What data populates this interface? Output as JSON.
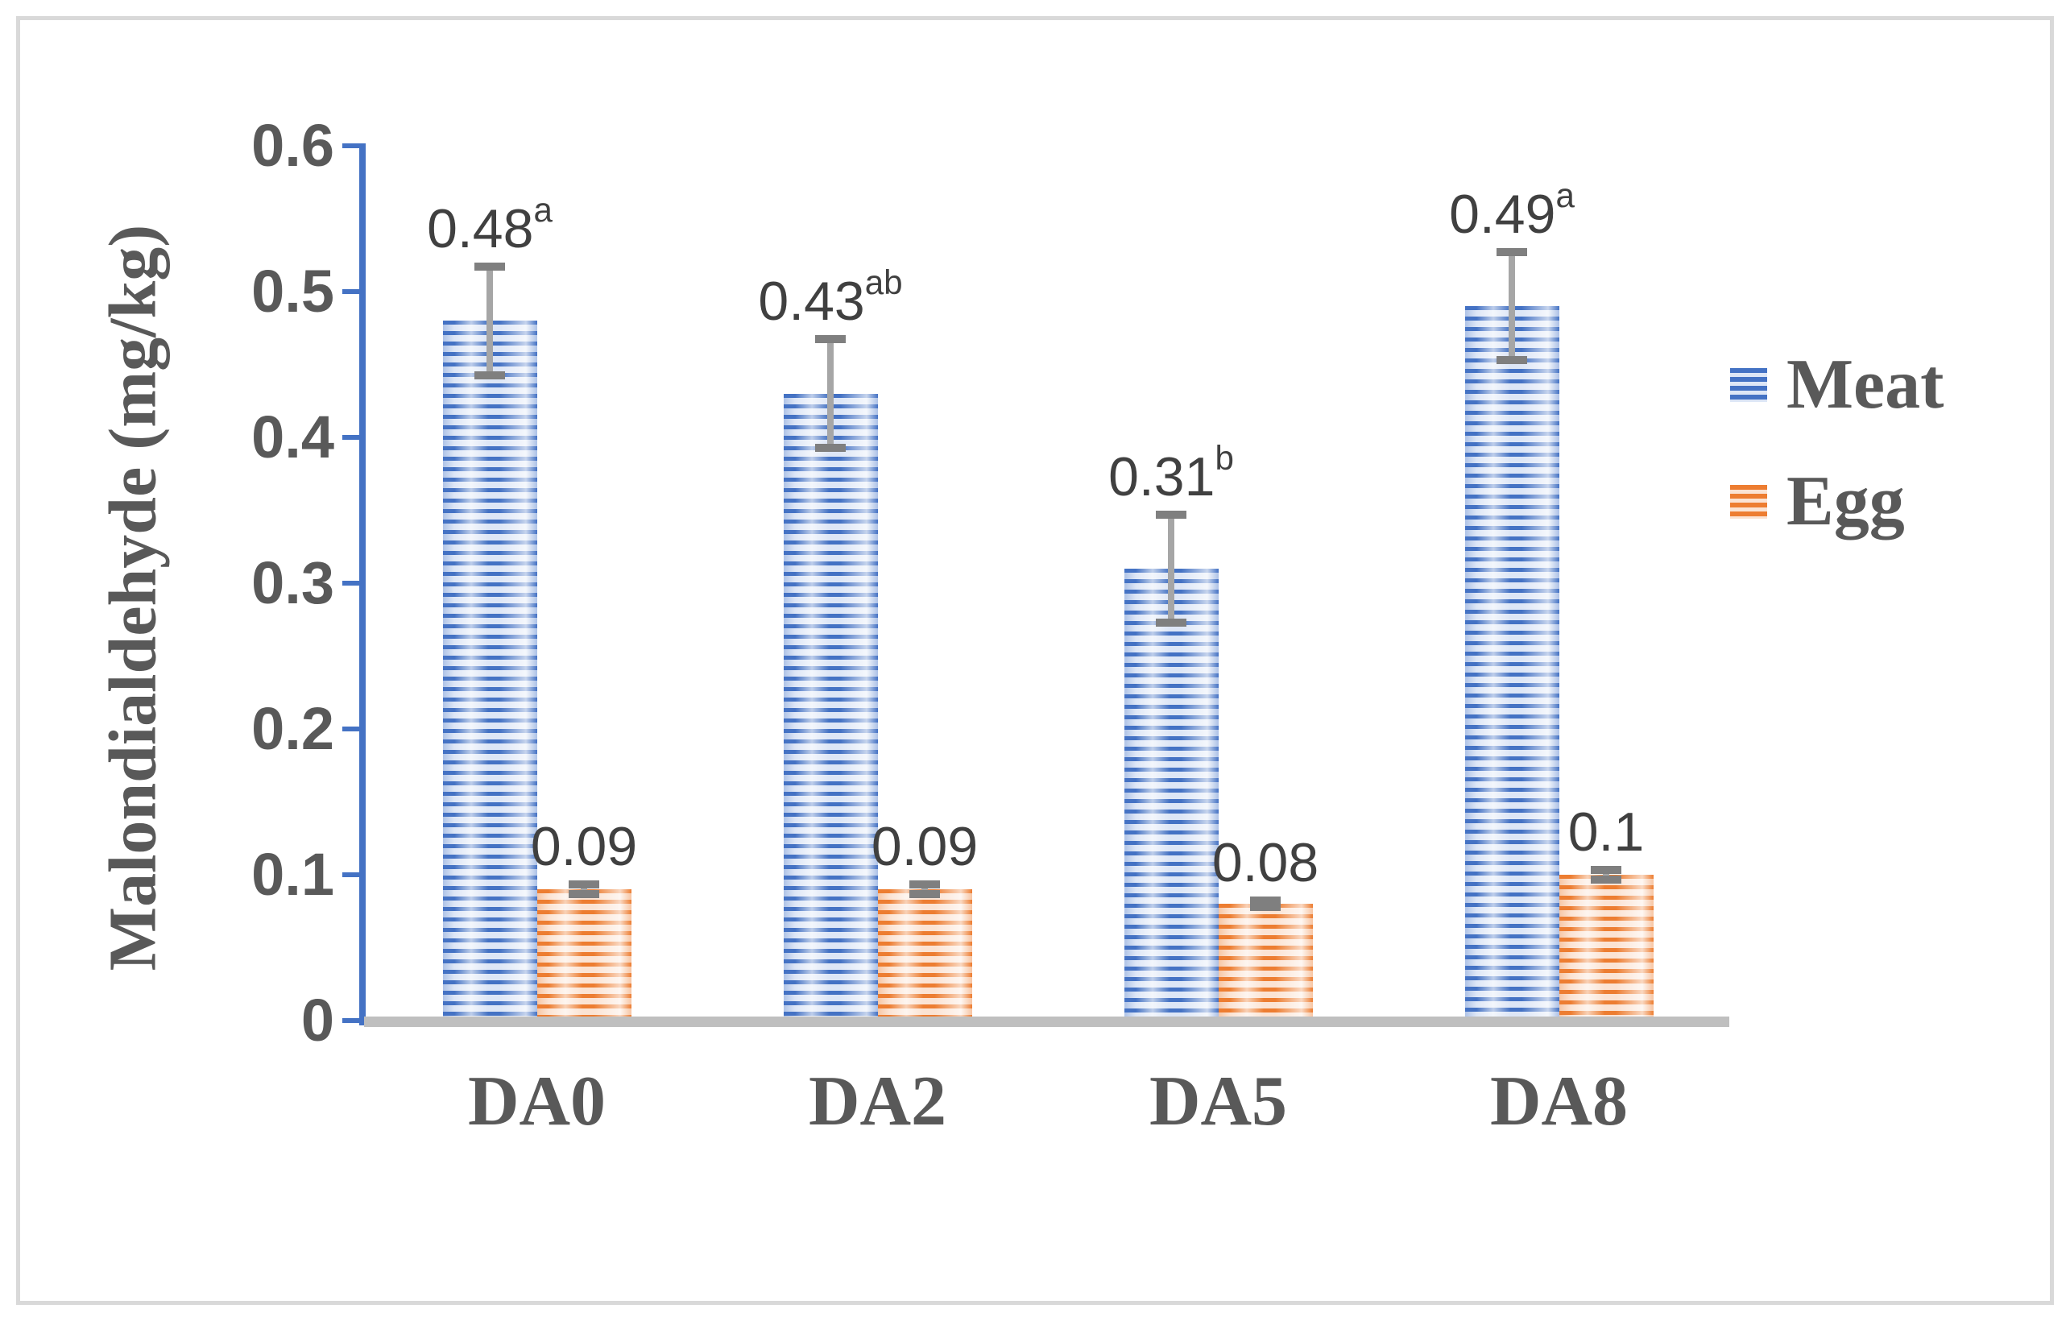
{
  "frame": {
    "border_color": "#D9D9D9"
  },
  "colors": {
    "axis_blue": "#4472C4",
    "meat_stripe": "#4472C4",
    "egg_stripe": "#ED7D31",
    "error_bar": "#7F7F7F",
    "baseline_gray": "#BFBFBF",
    "text_gray": "#595959",
    "label_gray": "#404040"
  },
  "chart_data": {
    "type": "bar",
    "title": "",
    "ylabel": "Malondialdehyde (mg/kg)",
    "xlabel": "",
    "ylim": [
      0,
      0.6
    ],
    "grid": false,
    "legend_position": "right",
    "categories": [
      "DA0",
      "DA2",
      "DA5",
      "DA8"
    ],
    "yticks": [
      "0",
      "0.1",
      "0.2",
      "0.3",
      "0.4",
      "0.5",
      "0.6"
    ],
    "ytick_values": [
      0,
      0.1,
      0.2,
      0.3,
      0.4,
      0.5,
      0.6
    ],
    "series": [
      {
        "name": "Meat",
        "color": "#4472C4",
        "values": [
          0.48,
          0.43,
          0.31,
          0.49
        ],
        "errors": [
          0.04,
          0.04,
          0.04,
          0.04
        ],
        "labels": [
          {
            "text": "0.48",
            "sup": "a"
          },
          {
            "text": "0.43",
            "sup": "ab"
          },
          {
            "text": "0.31",
            "sup": "b"
          },
          {
            "text": "0.49",
            "sup": "a"
          }
        ]
      },
      {
        "name": "Egg",
        "color": "#ED7D31",
        "values": [
          0.09,
          0.09,
          0.08,
          0.1
        ],
        "errors": [
          0.006,
          0.006,
          0.005,
          0.006
        ],
        "labels": [
          {
            "text": "0.09",
            "sup": ""
          },
          {
            "text": "0.09",
            "sup": ""
          },
          {
            "text": "0.08",
            "sup": ""
          },
          {
            "text": "0.1",
            "sup": ""
          }
        ]
      }
    ]
  }
}
